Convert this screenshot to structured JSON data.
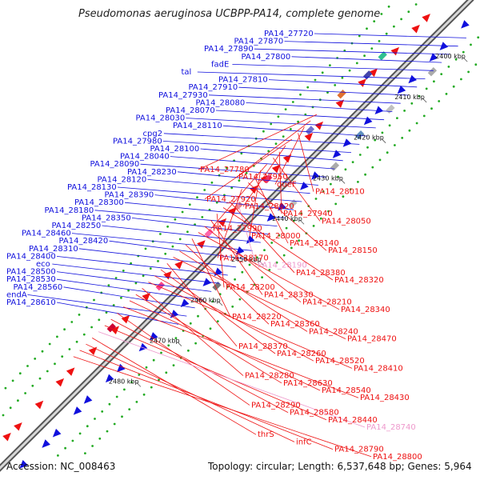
{
  "title": "Pseudomonas aeruginosa UCBPP-PA14, complete genome",
  "footer": {
    "accession": "Accession: NC_008463",
    "topology": "Topology: circular; Length: 6,537,648 bp; Genes: 5,964"
  },
  "colors": {
    "plus_strand": "#1010dd",
    "minus_strand": "#ee1111",
    "pseudogene_label": "#ee99cc",
    "backbone": "#888888",
    "tick_dots": "#22aa22"
  },
  "kbp_ticks": [
    "2400 kbp",
    "2410 kbp",
    "2420 kbp",
    "2430 kbp",
    "2440 kbp",
    "2450 kbp",
    "2460 kbp",
    "2470 kbp",
    "2480 kbp"
  ],
  "plus_labels": [
    "PA14_27720",
    "PA14_27870",
    "PA14_27890",
    "PA14_27800",
    "fadE",
    "tal",
    "PA14_27810",
    "PA14_27910",
    "PA14_27930",
    "PA14_28080",
    "PA14_28070",
    "PA14_28030",
    "PA14_28110",
    "cpg2",
    "PA14_27980",
    "PA14_28100",
    "PA14_28040",
    "PA14_28090",
    "PA14_28230",
    "PA14_28120",
    "PA14_28130",
    "PA14_28390",
    "PA14_28300",
    "PA14_28180",
    "PA14_28350",
    "PA14_28250",
    "PA14_28460",
    "PA14_28420",
    "PA14_28310",
    "PA14_28400",
    "eco",
    "PA14_28500",
    "PA14_28530",
    "PA14_28560",
    "endA",
    "PA14_28610"
  ],
  "minus_labels": [
    "PA14_27780",
    "PA14_27950",
    "queF",
    "PA14_28010",
    "PA14_27920",
    "PA14_28020",
    "PA14_27940",
    "PA14_28050",
    "PA14_27990",
    "PA14_28000",
    "PA14_28140",
    "PA14_28150",
    "PA14_28170",
    "PA14_28190",
    "PA14_28380",
    "PA14_28320",
    "PA14_28200",
    "PA14_28330",
    "PA14_28210",
    "PA14_28340",
    "PA14_28220",
    "PA14_28360",
    "PA14_28240",
    "PA14_28470",
    "PA14_28370",
    "PA14_28260",
    "PA14_28520",
    "PA14_28410",
    "PA14_28280",
    "PA14_28630",
    "PA14_28540",
    "PA14_28430",
    "PA14_28290",
    "PA14_28580",
    "PA14_28440",
    "PA14_28740",
    "thrS",
    "infC",
    "PA14_28790",
    "PA14_28800"
  ]
}
